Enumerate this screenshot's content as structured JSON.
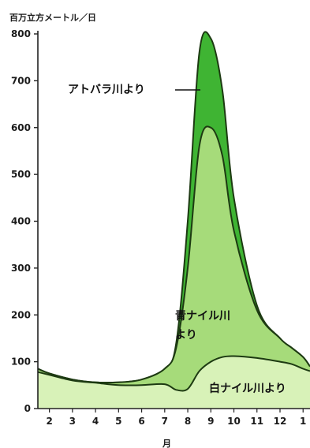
{
  "chart_data": {
    "type": "area",
    "ylabel": "百万立方メートル／日",
    "xlabel": "月",
    "ylim": [
      0,
      800
    ],
    "yticks": [
      "0",
      "100",
      "200",
      "300",
      "400",
      "500",
      "600",
      "700",
      "800"
    ],
    "categories": [
      "2",
      "3",
      "4",
      "5",
      "6",
      "7",
      "8",
      "9",
      "10",
      "11",
      "12",
      "1"
    ],
    "x": [
      1.5,
      2,
      3,
      4,
      5,
      6,
      7,
      7.5,
      8,
      8.5,
      9,
      9.5,
      10,
      11,
      12,
      12.5,
      13,
      13.3
    ],
    "series": [
      {
        "name": "白ナイル川より",
        "values": [
          78,
          72,
          60,
          55,
          50,
          50,
          52,
          40,
          42,
          80,
          100,
          110,
          112,
          108,
          100,
          95,
          85,
          80
        ],
        "color": "#d8f2b8"
      },
      {
        "name": "青ナイル川より",
        "values": [
          85,
          75,
          62,
          56,
          56,
          62,
          85,
          130,
          300,
          560,
          600,
          540,
          380,
          210,
          150,
          130,
          110,
          90
        ],
        "color": "#a6db7a"
      },
      {
        "name": "アトバラ川より",
        "values": [
          85,
          75,
          62,
          56,
          56,
          62,
          85,
          140,
          400,
          760,
          790,
          680,
          450,
          220,
          150,
          130,
          110,
          90
        ],
        "color": "#3fb433"
      }
    ],
    "annotations": {
      "atbara": "アトバラ川より",
      "blue_nile_line1": "青ナイル川",
      "blue_nile_line2": "より",
      "white_nile": "白ナイル川より"
    }
  }
}
